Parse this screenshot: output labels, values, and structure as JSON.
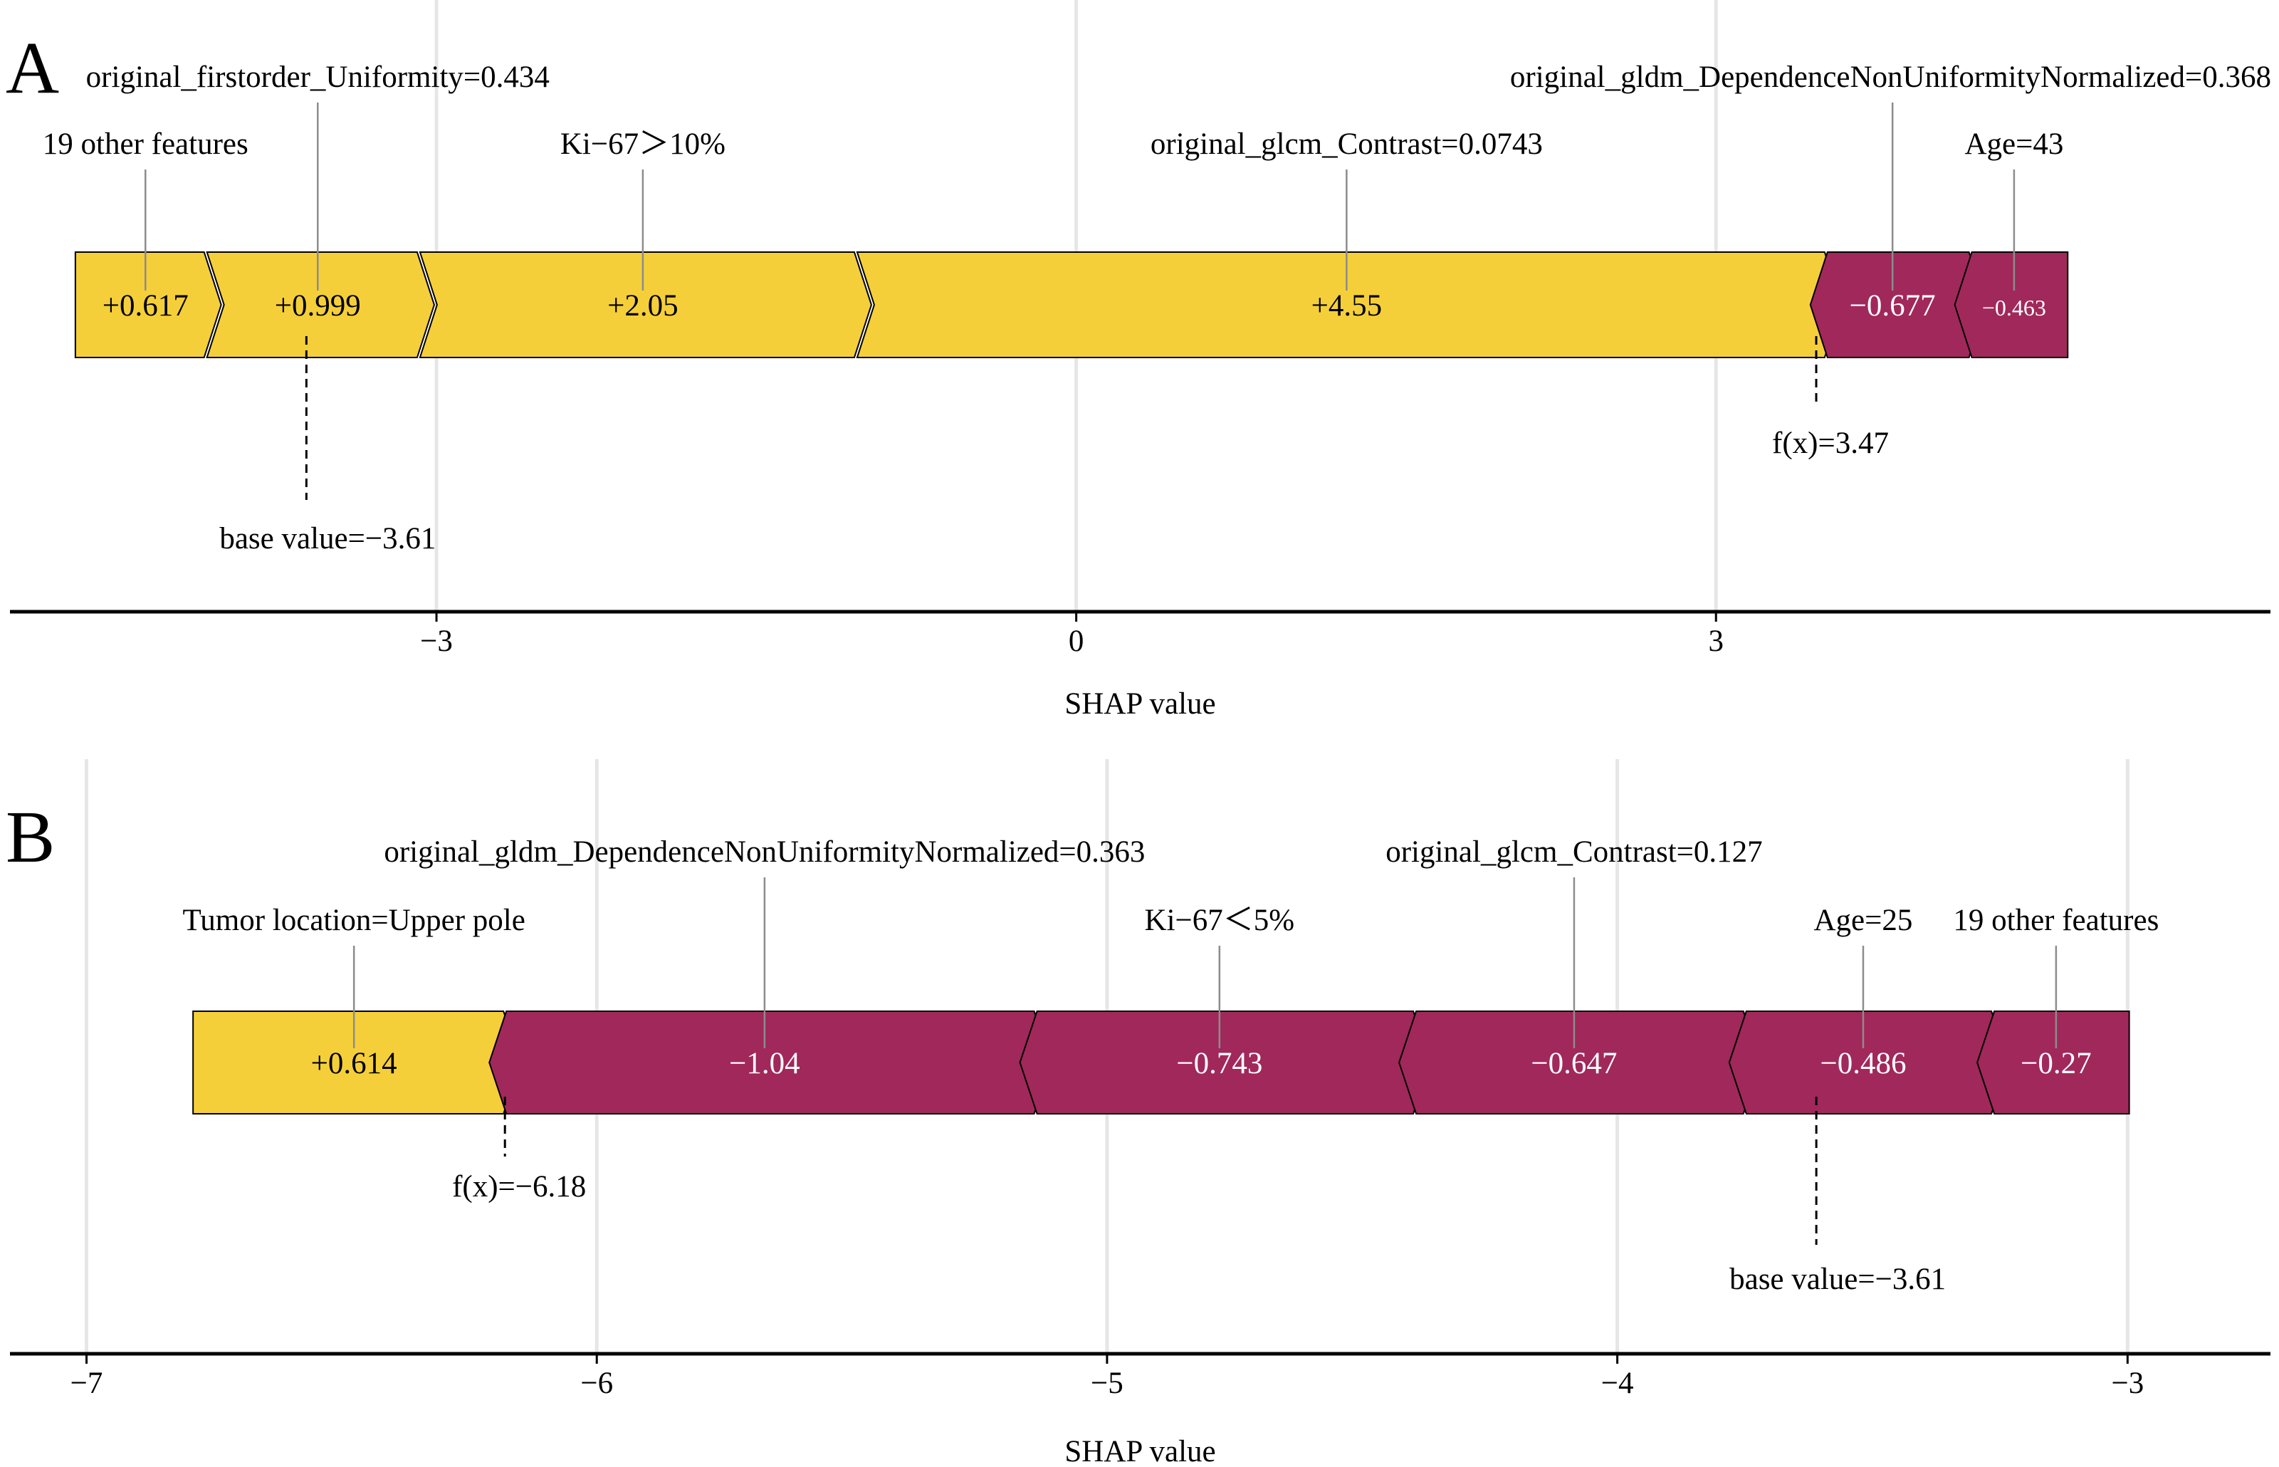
{
  "colors": {
    "positive": "#f5cf3a",
    "negative": "#a1285b",
    "grid": "#e6e6e6",
    "leader": "#8c8c8c",
    "axis": "#000000"
  },
  "chart_data": [
    {
      "type": "force",
      "panel": "A",
      "xlabel": "SHAP value",
      "xlim": [
        -5.0,
        5.6
      ],
      "ticks": [
        -3,
        0,
        3
      ],
      "tick_labels": [
        "−3",
        "0",
        "3"
      ],
      "base_value": -3.61,
      "base_label": "base value=−3.61",
      "fx_value": 3.47,
      "fx_label": "f(x)=3.47",
      "segments": [
        {
          "feature": "19 other features",
          "value": 0.617,
          "value_label": "+0.617",
          "sign": "pos",
          "start": -4.7,
          "end": -4.083,
          "label_level": 2
        },
        {
          "feature": "original_firstorder_Uniformity=0.434",
          "value": 0.999,
          "value_label": "+0.999",
          "sign": "pos",
          "start": -4.083,
          "end": -3.084,
          "label_level": 1
        },
        {
          "feature": "Ki−67＞10%",
          "value": 2.05,
          "value_label": "+2.05",
          "sign": "pos",
          "start": -3.084,
          "end": -1.034,
          "label_level": 2
        },
        {
          "feature": "original_glcm_Contrast=0.0743",
          "value": 4.55,
          "value_label": "+4.55",
          "sign": "pos",
          "start": -1.034,
          "end": 3.516,
          "label_level": 2
        },
        {
          "feature": "original_gldm_DependenceNonUniformityNormalized=0.368",
          "value": -0.677,
          "value_label": "−0.677",
          "sign": "neg",
          "start": 3.516,
          "end": 4.193,
          "label_level": 1
        },
        {
          "feature": "Age=43",
          "value": -0.463,
          "value_label": "−0.463",
          "sign": "neg",
          "start": 4.193,
          "end": 4.656,
          "label_level": 2
        }
      ]
    },
    {
      "type": "force",
      "panel": "B",
      "xlabel": "SHAP value",
      "xlim": [
        -7.15,
        -2.72
      ],
      "ticks": [
        -7,
        -6,
        -5,
        -4,
        -3
      ],
      "tick_labels": [
        "−7",
        "−6",
        "−5",
        "−4",
        "−3"
      ],
      "base_value": -3.61,
      "base_label": "base value=−3.61",
      "fx_value": -6.18,
      "fx_label": "f(x)=−6.18",
      "segments": [
        {
          "feature": "Tumor location=Upper pole",
          "value": 0.614,
          "value_label": "+0.614",
          "sign": "pos",
          "start": -6.794,
          "end": -6.18,
          "label_level": 2
        },
        {
          "feature": "original_gldm_DependenceNonUniformityNormalized=0.363",
          "value": -1.04,
          "value_label": "−1.04",
          "sign": "neg",
          "start": -6.18,
          "end": -5.14,
          "label_level": 1
        },
        {
          "feature": "Ki−67＜5%",
          "value": -0.743,
          "value_label": "−0.743",
          "sign": "neg",
          "start": -5.14,
          "end": -4.397,
          "label_level": 2
        },
        {
          "feature": "original_glcm_Contrast=0.127",
          "value": -0.647,
          "value_label": "−0.647",
          "sign": "neg",
          "start": -4.397,
          "end": -3.75,
          "label_level": 1
        },
        {
          "feature": "Age=25",
          "value": -0.486,
          "value_label": "−0.486",
          "sign": "neg",
          "start": -3.75,
          "end": -3.264,
          "label_level": 2
        },
        {
          "feature": "19 other features",
          "value": -0.27,
          "value_label": "−0.27",
          "sign": "neg",
          "start": -3.264,
          "end": -2.994,
          "label_level": 2
        }
      ]
    }
  ]
}
